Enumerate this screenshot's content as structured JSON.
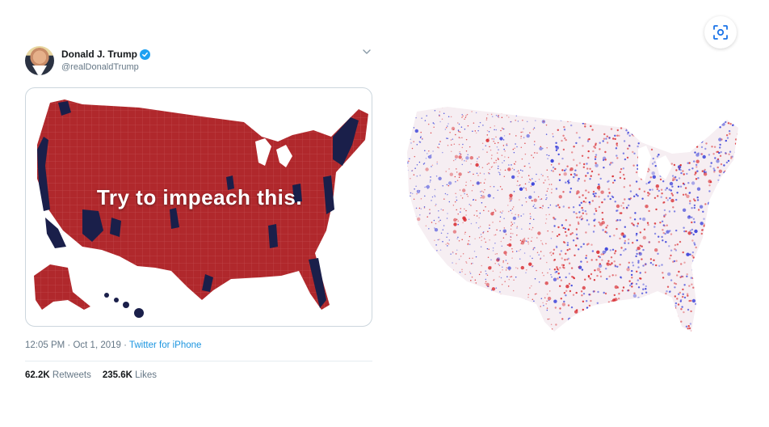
{
  "tweet": {
    "display_name": "Donald J. Trump",
    "handle": "@realDonaldTrump",
    "verified": true,
    "media_caption": "Try to impeach this.",
    "time": "12:05 PM",
    "separator": " · ",
    "date": "Oct 1, 2019",
    "source": "Twitter for iPhone",
    "retweets_count": "62.2K",
    "retweets_label": "Retweets",
    "likes_count": "235.6K",
    "likes_label": "Likes"
  },
  "icons": {
    "verified": "verified-badge-icon",
    "more": "chevron-down-icon",
    "scan": "image-search-icon"
  },
  "colors": {
    "map_red": "#b0282c",
    "map_dark": "#1a1f4a",
    "dot_red": "#d8262b",
    "dot_blue": "#2d35d8",
    "link_blue": "#1b95e0",
    "verified_blue": "#1da1f2"
  }
}
